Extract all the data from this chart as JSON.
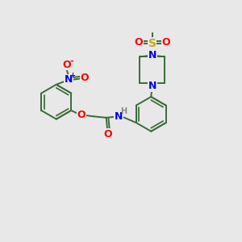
{
  "bg_color": "#e8e8e8",
  "bond_color": "#3a6b3a",
  "atom_colors": {
    "N": "#0000ee",
    "O": "#ff0000",
    "S": "#ccaa00",
    "C": "#3a6b3a",
    "H": "#888888"
  },
  "bond_width": 1.4,
  "figsize": [
    3.0,
    3.0
  ],
  "dpi": 100,
  "xlim": [
    0,
    10
  ],
  "ylim": [
    0,
    10
  ]
}
